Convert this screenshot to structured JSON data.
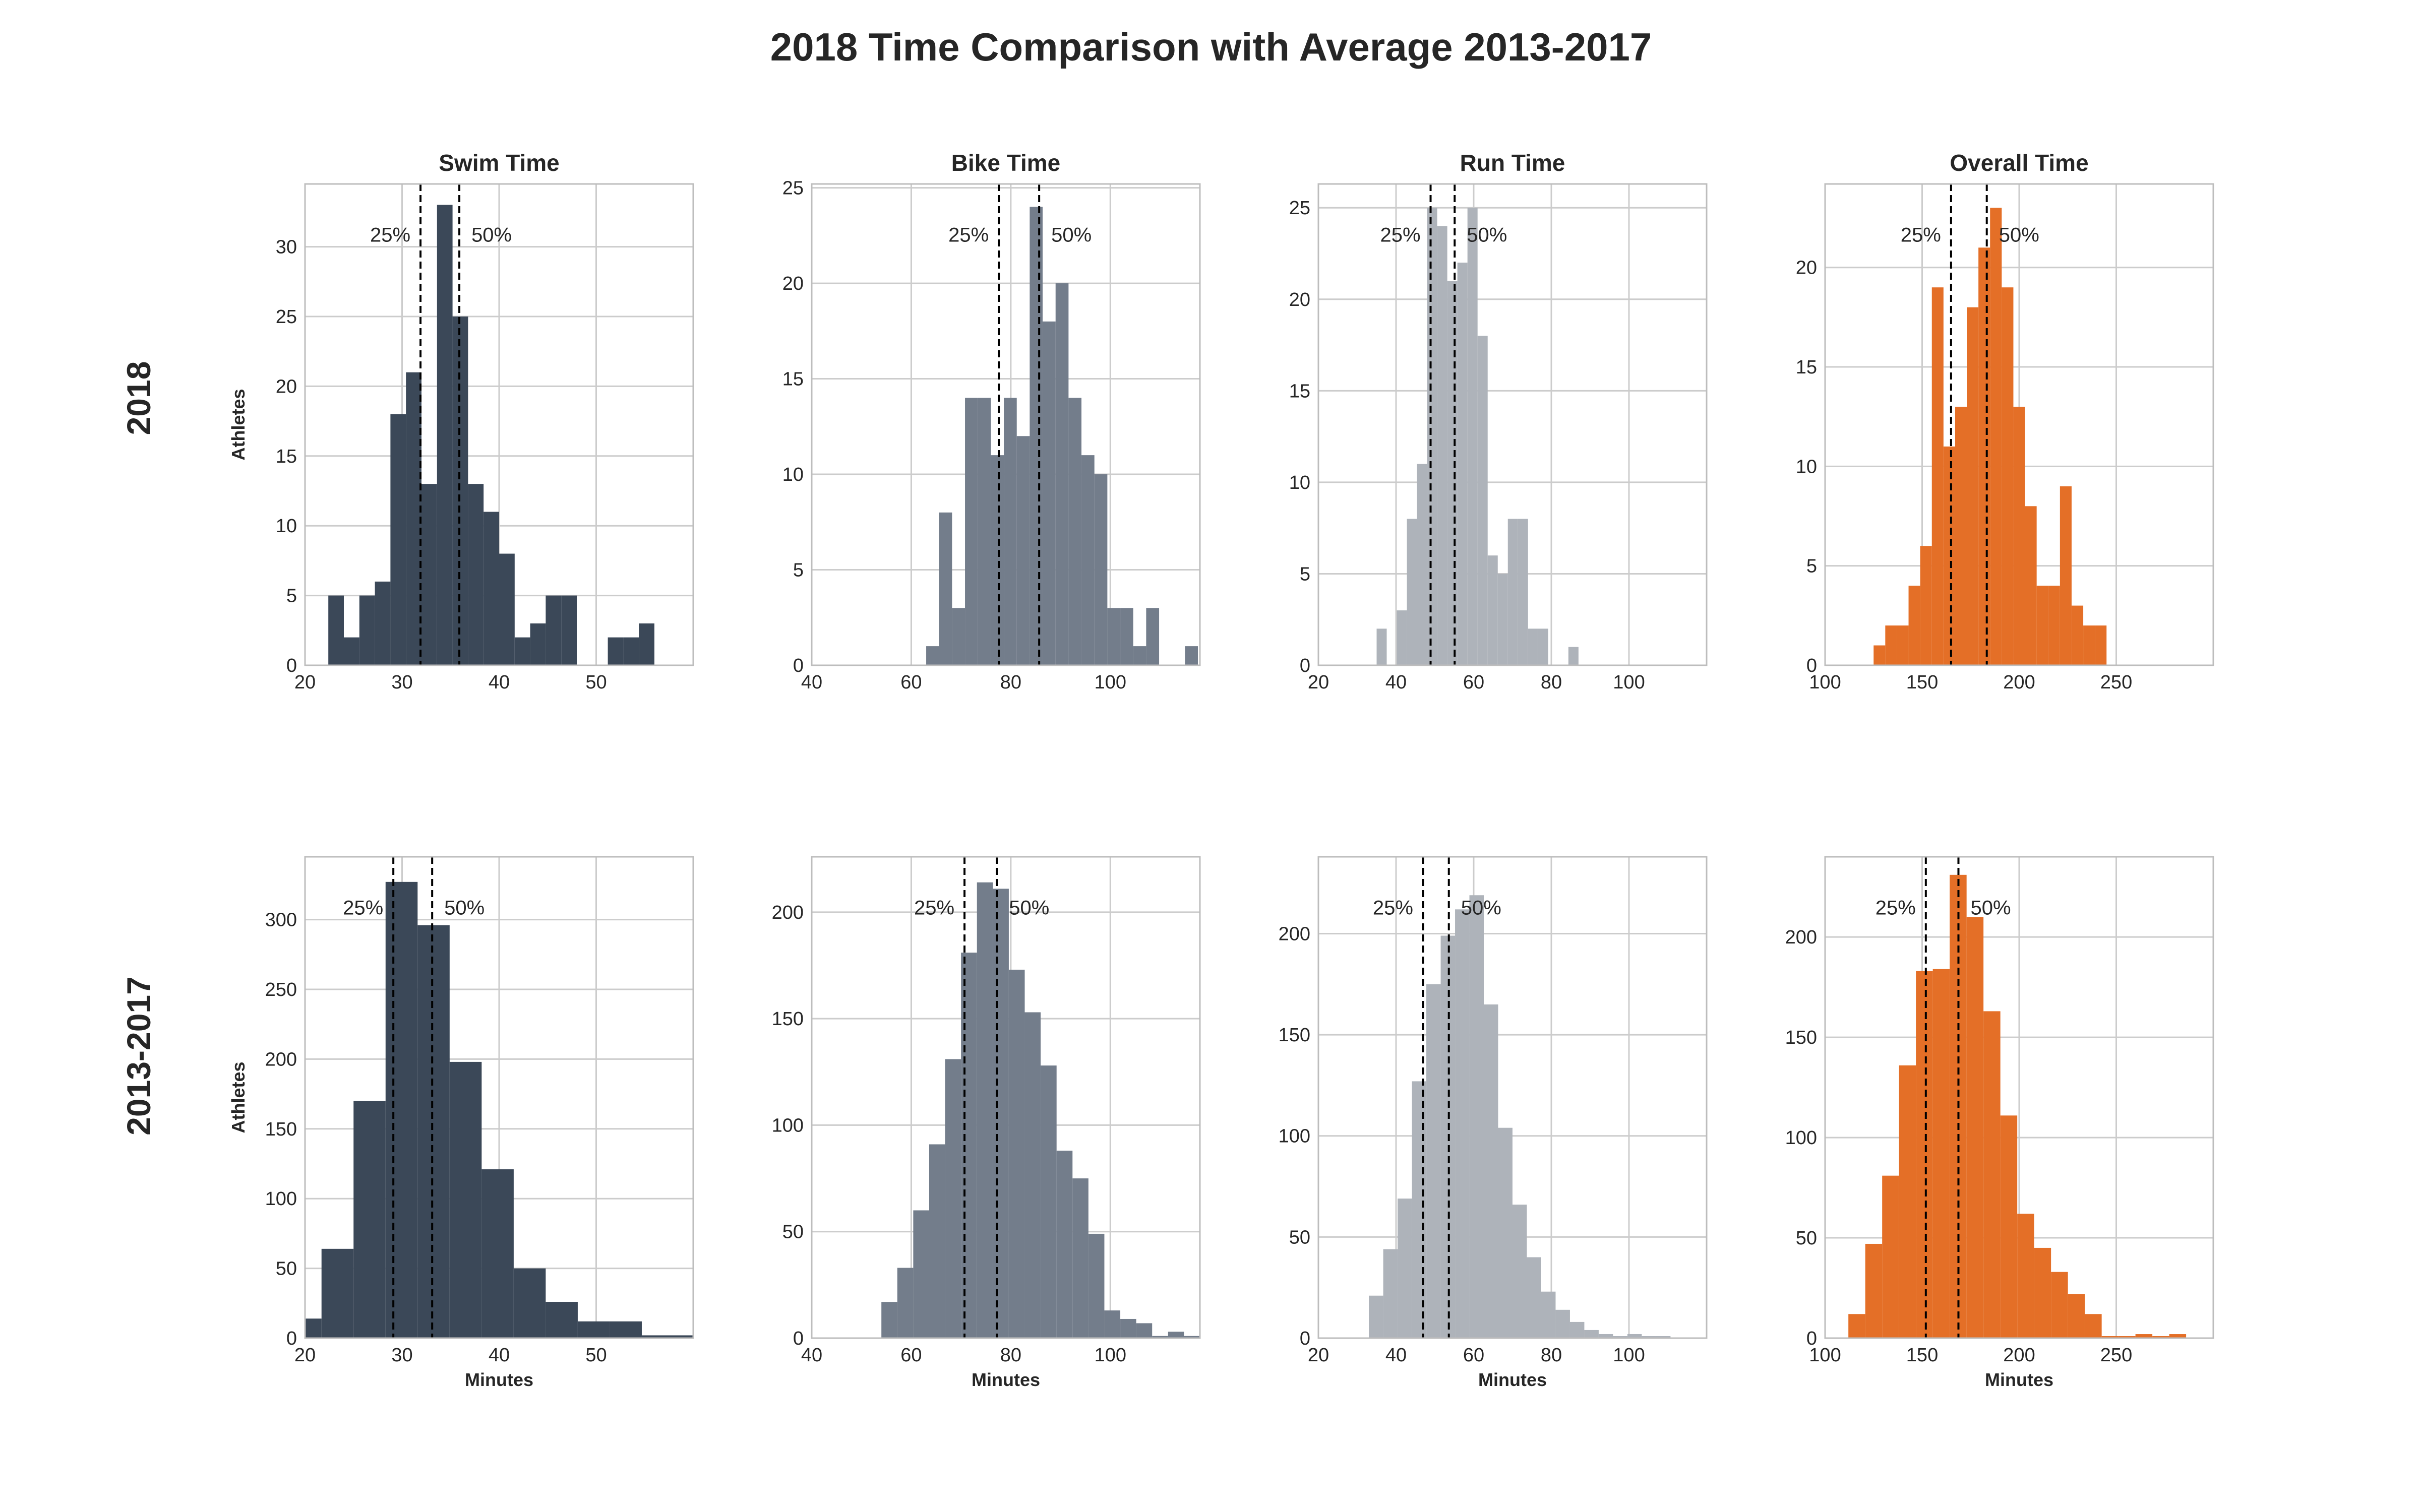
{
  "title": "2018 Time Comparison with Average 2013-2017",
  "row_labels": [
    "2018",
    "2013-2017"
  ],
  "y_axis_label": "Athletes",
  "x_axis_label": "Minutes",
  "percentile_labels": {
    "p25": "25%",
    "p50": "50%"
  },
  "colors": {
    "swim": "#3b4858",
    "bike": "#737d8b",
    "run": "#aeb3ba",
    "overall": "#e46f27",
    "grid": "#cccccc",
    "frame": "#bdbdbd",
    "vline": "#000000"
  },
  "chart_data": [
    {
      "type": "bar",
      "title": "Swim Time",
      "row": "2018",
      "color_key": "swim",
      "xlim": [
        20,
        60
      ],
      "xticks": [
        20,
        30,
        40,
        50
      ],
      "ylim": [
        0,
        34.5
      ],
      "yticks": [
        0,
        5,
        10,
        15,
        20,
        25,
        30
      ],
      "bin_edges": [
        22.4,
        24.0,
        25.6,
        27.2,
        28.8,
        30.4,
        32.0,
        33.6,
        35.2,
        36.8,
        38.4,
        40.0,
        41.6,
        43.2,
        44.8,
        46.4,
        48.0,
        49.6,
        51.2,
        52.8,
        54.4,
        56.0
      ],
      "counts": [
        5,
        2,
        5,
        6,
        18,
        21,
        13,
        33,
        25,
        13,
        11,
        8,
        2,
        3,
        5,
        5,
        0,
        0,
        2,
        2,
        3
      ],
      "p25": 31.9,
      "p50": 35.9
    },
    {
      "type": "bar",
      "title": "Bike Time",
      "row": "2018",
      "color_key": "bike",
      "xlim": [
        40,
        118
      ],
      "xticks": [
        40,
        60,
        80,
        100
      ],
      "ylim": [
        0,
        25.2
      ],
      "yticks": [
        0,
        5,
        10,
        15,
        20,
        25
      ],
      "bin_edges": [
        63.0,
        65.6,
        68.2,
        70.8,
        73.4,
        76.0,
        78.6,
        81.2,
        83.8,
        86.4,
        89.0,
        91.6,
        94.2,
        96.8,
        99.4,
        102.0,
        104.6,
        107.2,
        109.8,
        112.4,
        115.0,
        117.6
      ],
      "counts": [
        1,
        8,
        3,
        14,
        14,
        11,
        14,
        12,
        24,
        18,
        20,
        14,
        11,
        10,
        3,
        3,
        1,
        3,
        0,
        0,
        1
      ],
      "p25": 77.6,
      "p50": 85.7
    },
    {
      "type": "bar",
      "title": "Run Time",
      "row": "2018",
      "color_key": "run",
      "xlim": [
        20,
        120
      ],
      "xticks": [
        20,
        40,
        60,
        80,
        100
      ],
      "ylim": [
        0,
        26.3
      ],
      "yticks": [
        0,
        5,
        10,
        15,
        20,
        25
      ],
      "bin_edges": [
        35.0,
        37.6,
        40.2,
        42.8,
        45.4,
        48.0,
        50.6,
        53.2,
        55.8,
        58.4,
        61.0,
        63.6,
        66.2,
        68.8,
        71.4,
        74.0,
        76.6,
        79.2,
        81.8,
        84.4,
        87.0
      ],
      "counts": [
        2,
        0,
        3,
        8,
        11,
        25,
        24,
        21,
        22,
        25,
        18,
        6,
        5,
        8,
        8,
        2,
        2,
        0,
        0,
        1
      ],
      "p25": 48.9,
      "p50": 55.1
    },
    {
      "type": "bar",
      "title": "Overall Time",
      "row": "2018",
      "color_key": "overall",
      "xlim": [
        100,
        300
      ],
      "xticks": [
        100,
        150,
        200,
        250
      ],
      "ylim": [
        0,
        24.2
      ],
      "yticks": [
        0,
        5,
        10,
        15,
        20
      ],
      "bin_edges": [
        125.0,
        131.0,
        137.0,
        143.0,
        149.0,
        155.0,
        161.0,
        167.0,
        173.0,
        179.0,
        185.0,
        191.0,
        197.0,
        203.0,
        209.0,
        215.0,
        221.0,
        227.0,
        233.0,
        239.0,
        245.0
      ],
      "counts": [
        1,
        2,
        2,
        4,
        6,
        19,
        11,
        13,
        18,
        21,
        23,
        19,
        13,
        8,
        4,
        4,
        9,
        3,
        2,
        2
      ],
      "p25": 164.9,
      "p50": 183.3
    },
    {
      "type": "bar",
      "title": "",
      "row": "2013-2017",
      "color_key": "swim",
      "xlim": [
        20,
        60
      ],
      "xticks": [
        20,
        30,
        40,
        50
      ],
      "ylim": [
        0,
        345
      ],
      "yticks": [
        0,
        50,
        100,
        150,
        200,
        250,
        300
      ],
      "bin_edges": [
        20.0,
        21.7,
        25.0,
        28.3,
        31.6,
        34.9,
        38.2,
        41.5,
        44.8,
        48.1,
        51.4,
        54.7,
        60.0
      ],
      "counts": [
        14,
        64,
        170,
        327,
        296,
        198,
        121,
        50,
        26,
        12,
        12,
        2
      ],
      "p25": 29.1,
      "p50": 33.1
    },
    {
      "type": "bar",
      "title": "",
      "row": "2013-2017",
      "color_key": "bike",
      "xlim": [
        40,
        118
      ],
      "xticks": [
        40,
        60,
        80,
        100
      ],
      "ylim": [
        0,
        226
      ],
      "yticks": [
        0,
        50,
        100,
        150,
        200
      ],
      "bin_edges": [
        54.0,
        57.2,
        60.4,
        63.6,
        66.8,
        70.0,
        73.2,
        76.4,
        79.6,
        82.8,
        86.0,
        89.2,
        92.4,
        95.6,
        98.8,
        102.0,
        105.2,
        108.4,
        111.6,
        114.8,
        118.0
      ],
      "counts": [
        17,
        33,
        60,
        91,
        131,
        181,
        214,
        211,
        173,
        153,
        128,
        88,
        75,
        49,
        13,
        9,
        7,
        1,
        3,
        1
      ],
      "p25": 70.7,
      "p50": 77.2
    },
    {
      "type": "bar",
      "title": "",
      "row": "2013-2017",
      "color_key": "run",
      "xlim": [
        20,
        120
      ],
      "xticks": [
        20,
        40,
        60,
        80,
        100
      ],
      "ylim": [
        0,
        238
      ],
      "yticks": [
        0,
        50,
        100,
        150,
        200
      ],
      "bin_edges": [
        33.0,
        36.7,
        40.4,
        44.1,
        47.8,
        51.5,
        55.2,
        58.9,
        62.6,
        66.3,
        70.0,
        73.7,
        77.4,
        81.1,
        84.8,
        88.5,
        92.2,
        95.9,
        99.6,
        103.3,
        107.0,
        110.7
      ],
      "counts": [
        21,
        44,
        69,
        127,
        175,
        199,
        212,
        219,
        165,
        104,
        66,
        40,
        23,
        14,
        8,
        4,
        2,
        1,
        2,
        1,
        1
      ],
      "p25": 47.0,
      "p50": 53.6
    },
    {
      "type": "bar",
      "title": "",
      "row": "2013-2017",
      "color_key": "overall",
      "xlim": [
        100,
        300
      ],
      "xticks": [
        100,
        150,
        200,
        250
      ],
      "ylim": [
        0,
        240
      ],
      "yticks": [
        0,
        50,
        100,
        150,
        200
      ],
      "bin_edges": [
        112.0,
        120.7,
        129.4,
        138.1,
        146.8,
        155.5,
        164.2,
        172.9,
        181.6,
        190.3,
        199.0,
        207.7,
        216.4,
        225.1,
        233.8,
        242.5,
        251.2,
        259.9,
        268.6,
        277.3,
        286.0,
        294.7
      ],
      "counts": [
        12,
        47,
        81,
        136,
        183,
        184,
        231,
        210,
        163,
        111,
        62,
        45,
        33,
        22,
        12,
        1,
        1,
        2,
        1,
        2,
        0
      ],
      "p25": 151.9,
      "p50": 168.7
    }
  ]
}
